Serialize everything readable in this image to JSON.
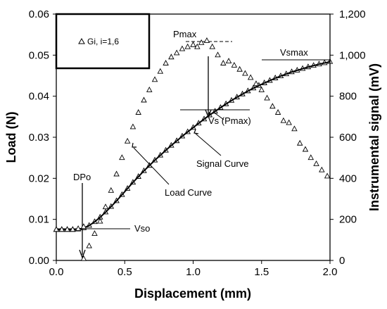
{
  "chart_data": {
    "type": "scatter",
    "xlabel": "Displacement (mm)",
    "ylabel": "Load (N)",
    "y2label": "Instrumental signal (mV)",
    "xlim": [
      0,
      2
    ],
    "ylim": [
      0,
      0.06
    ],
    "y2lim": [
      0,
      1200
    ],
    "x_ticks": [
      "0.0",
      "0.5",
      "1.0",
      "1.5",
      "2.0"
    ],
    "y_ticks": [
      "0.00",
      "0.01",
      "0.02",
      "0.03",
      "0.04",
      "0.05",
      "0.06"
    ],
    "y2_ticks": [
      "0",
      "200",
      "400",
      "600",
      "800",
      "1,000",
      "1,200"
    ],
    "legend": {
      "label": "Gi, i=1,6",
      "position": "top-left"
    },
    "series": [
      {
        "name": "Gi, i=1,6",
        "axis": "left",
        "x": [
          0.0,
          0.04,
          0.08,
          0.12,
          0.16,
          0.2,
          0.2,
          0.24,
          0.28,
          0.32,
          0.36,
          0.4,
          0.44,
          0.48,
          0.52,
          0.56,
          0.6,
          0.64,
          0.68,
          0.72,
          0.76,
          0.8,
          0.84,
          0.88,
          0.92,
          0.96,
          1.0,
          1.03,
          1.06,
          1.1,
          1.14,
          1.18,
          1.22,
          1.26,
          1.3,
          1.34,
          1.38,
          1.42,
          1.46,
          1.5,
          1.54,
          1.58,
          1.62,
          1.66,
          1.7,
          1.74,
          1.78,
          1.82,
          1.86,
          1.9,
          1.94,
          1.98
        ],
        "y": [
          0.0075,
          0.0075,
          0.0075,
          0.0075,
          0.0077,
          0.0082,
          0.0004,
          0.0035,
          0.0065,
          0.0095,
          0.013,
          0.017,
          0.021,
          0.025,
          0.029,
          0.0325,
          0.036,
          0.039,
          0.0415,
          0.044,
          0.046,
          0.048,
          0.0495,
          0.0505,
          0.0515,
          0.052,
          0.0525,
          0.052,
          0.053,
          0.0535,
          0.052,
          0.05,
          0.048,
          0.0485,
          0.0475,
          0.0465,
          0.0455,
          0.0445,
          0.043,
          0.0415,
          0.0395,
          0.0375,
          0.036,
          0.034,
          0.0335,
          0.032,
          0.0285,
          0.027,
          0.025,
          0.0235,
          0.022,
          0.0205
        ]
      },
      {
        "name": "Signal Curve",
        "axis": "right",
        "x": [
          0.0,
          0.04,
          0.08,
          0.12,
          0.16,
          0.2,
          0.24,
          0.28,
          0.32,
          0.36,
          0.4,
          0.44,
          0.48,
          0.52,
          0.56,
          0.6,
          0.64,
          0.68,
          0.72,
          0.76,
          0.8,
          0.84,
          0.88,
          0.92,
          0.96,
          1.0,
          1.04,
          1.08,
          1.12,
          1.16,
          1.2,
          1.24,
          1.28,
          1.32,
          1.36,
          1.4,
          1.44,
          1.48,
          1.52,
          1.56,
          1.6,
          1.64,
          1.68,
          1.72,
          1.76,
          1.8,
          1.84,
          1.88,
          1.92,
          1.96,
          2.0
        ],
        "y": [
          150,
          150,
          150,
          150,
          152,
          158,
          170,
          188,
          210,
          235,
          262,
          290,
          320,
          350,
          380,
          408,
          436,
          462,
          488,
          512,
          536,
          560,
          582,
          605,
          626,
          647,
          668,
          688,
          708,
          726,
          744,
          762,
          779,
          795,
          810,
          825,
          839,
          852,
          864,
          876,
          888,
          898,
          908,
          918,
          926,
          934,
          942,
          949,
          956,
          962,
          968
        ]
      }
    ],
    "annotations": [
      "Pmax",
      "Vsmax",
      "Vs (Pmax)",
      "Signal Curve",
      "DPo",
      "Load Curve",
      "Vso"
    ]
  }
}
